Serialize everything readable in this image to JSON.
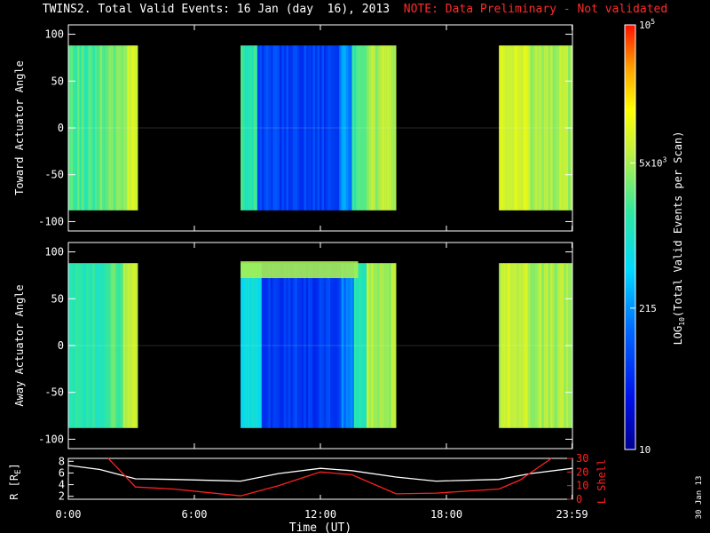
{
  "title": "TWINS2. Total Valid Events: 16 Jan (day  16), 2013",
  "note": "NOTE: Data Preliminary - Not validated",
  "colors": {
    "note": "#ff2a2a",
    "frame": "#ffffff",
    "background": "#000000",
    "l_shell": "#ff2020",
    "radius": "#ffffff"
  },
  "side_date": "30 Jan 13",
  "chart_data": [
    {
      "type": "heatmap",
      "ylabel": "Toward Actuator Angle",
      "ylim": [
        -110,
        110
      ],
      "yticks": [
        100,
        50,
        0,
        -50,
        -100
      ],
      "xlim": [
        0,
        24
      ],
      "data_extent_y": [
        -88,
        88
      ],
      "segments": [
        {
          "start": 0.0,
          "end": 3.3,
          "bands": [
            {
              "from": 0.0,
              "to": 1.4,
              "log": 3.3
            },
            {
              "from": 1.4,
              "to": 2.3,
              "log": 3.5
            },
            {
              "from": 2.3,
              "to": 2.8,
              "log": 3.65
            },
            {
              "from": 2.8,
              "to": 3.3,
              "log": 3.9
            }
          ]
        },
        {
          "start": 8.2,
          "end": 15.6,
          "bands": [
            {
              "from": 8.2,
              "to": 9.0,
              "log": 3.2
            },
            {
              "from": 9.0,
              "to": 12.9,
              "log": 1.85
            },
            {
              "from": 12.9,
              "to": 13.5,
              "log": 2.3
            },
            {
              "from": 13.5,
              "to": 14.2,
              "log": 3.25
            },
            {
              "from": 14.2,
              "to": 15.6,
              "log": 3.72
            }
          ]
        },
        {
          "start": 20.5,
          "end": 23.99,
          "bands": [
            {
              "from": 20.5,
              "to": 22.0,
              "log": 3.9
            },
            {
              "from": 22.0,
              "to": 23.99,
              "log": 3.7
            }
          ]
        }
      ]
    },
    {
      "type": "heatmap",
      "ylabel": "Away Actuator Angle",
      "ylim": [
        -110,
        110
      ],
      "yticks": [
        100,
        50,
        0,
        -50,
        -100
      ],
      "xlim": [
        0,
        24
      ],
      "data_extent_y": [
        -88,
        88
      ],
      "segments": [
        {
          "start": 0.0,
          "end": 3.3,
          "bands": [
            {
              "from": 0.0,
              "to": 1.8,
              "log": 3.1
            },
            {
              "from": 1.8,
              "to": 2.6,
              "log": 3.4
            },
            {
              "from": 2.6,
              "to": 3.3,
              "log": 3.75
            }
          ]
        },
        {
          "start": 8.2,
          "end": 15.6,
          "bands": [
            {
              "from": 8.2,
              "to": 9.2,
              "log": 2.8
            },
            {
              "from": 9.2,
              "to": 13.0,
              "log": 1.8
            },
            {
              "from": 13.0,
              "to": 13.6,
              "log": 2.2
            },
            {
              "from": 13.6,
              "to": 14.2,
              "log": 3.2
            },
            {
              "from": 14.2,
              "to": 15.6,
              "log": 3.7
            }
          ],
          "top_band": {
            "from": 8.2,
            "to": 13.8,
            "y_from": 72,
            "y_to": 90,
            "log": 3.7
          }
        },
        {
          "start": 20.5,
          "end": 23.99,
          "bands": [
            {
              "from": 20.5,
              "to": 22.0,
              "log": 3.85
            },
            {
              "from": 22.0,
              "to": 23.99,
              "log": 3.7
            }
          ]
        }
      ]
    },
    {
      "type": "line",
      "xlabel": "Time (UT)",
      "ylabel": "R [RE]",
      "y2label": "L Shell",
      "xlim": [
        0,
        24
      ],
      "ylim": [
        1.5,
        8.5
      ],
      "y2lim": [
        0,
        30
      ],
      "yticks": [
        8,
        6,
        4,
        2
      ],
      "y2ticks": [
        30,
        20,
        10,
        0
      ],
      "xticks": [
        {
          "value": 0,
          "label": "0:00"
        },
        {
          "value": 6,
          "label": "6:00"
        },
        {
          "value": 12,
          "label": "12:00"
        },
        {
          "value": 18,
          "label": "18:00"
        },
        {
          "value": 23.98,
          "label": "23:59"
        }
      ],
      "series": [
        {
          "name": "R",
          "axis": "left",
          "x": [
            0,
            1.5,
            3.2,
            5.0,
            8.2,
            10.0,
            12.0,
            13.5,
            15.6,
            17.5,
            20.5,
            22.0,
            23.99
          ],
          "y": [
            7.3,
            6.6,
            5.0,
            4.9,
            4.6,
            5.9,
            6.8,
            6.4,
            5.3,
            4.6,
            4.9,
            5.9,
            6.8
          ]
        },
        {
          "name": "L Shell",
          "axis": "right",
          "x": [
            1.9,
            3.2,
            5.0,
            8.2,
            10.0,
            12.0,
            13.5,
            15.6,
            17.5,
            20.5,
            21.5,
            23.0
          ],
          "y": [
            30,
            9,
            7.5,
            2.5,
            10,
            20,
            18,
            4,
            4.5,
            7.5,
            14,
            30
          ]
        }
      ]
    }
  ],
  "colorbar": {
    "label": "LOG10(Total Valid Events per Scan)",
    "log_range": [
      1,
      5
    ],
    "ticks": [
      {
        "log": 5,
        "label": "10^5"
      },
      {
        "log": 3.699,
        "label": "5x10^3"
      },
      {
        "log": 2.332,
        "label": "215"
      },
      {
        "log": 1,
        "label": "10"
      }
    ]
  }
}
